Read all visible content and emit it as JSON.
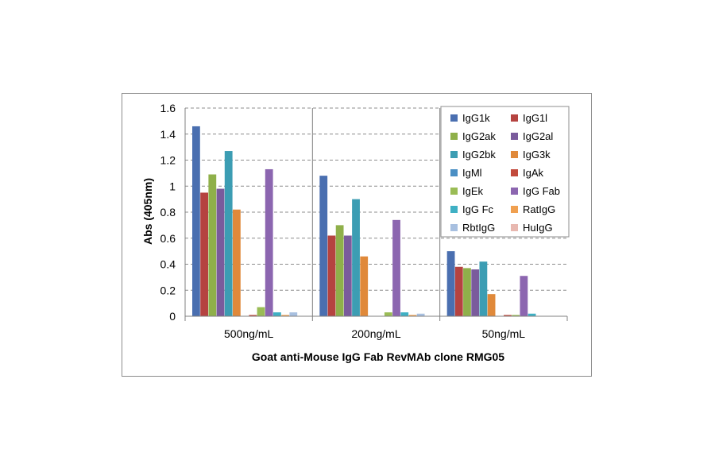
{
  "chart_data": {
    "type": "bar",
    "title": "",
    "xlabel": "Goat anti-Mouse IgG Fab RevMAb clone RMG05",
    "ylabel": "Abs (405nm)",
    "ylim": [
      0,
      1.6
    ],
    "yticks": [
      "0",
      "0.2",
      "0.4",
      "0.6",
      "0.8",
      "1",
      "1.2",
      "1.4",
      "1.6"
    ],
    "grid": true,
    "legend_position": "top-right",
    "categories": [
      "500ng/mL",
      "200ng/mL",
      "50ng/mL"
    ],
    "series": [
      {
        "name": "IgG1k",
        "color": "#4a6fb0",
        "values": [
          1.46,
          1.08,
          0.5
        ]
      },
      {
        "name": "IgG1l",
        "color": "#b54340",
        "values": [
          0.95,
          0.62,
          0.38
        ]
      },
      {
        "name": "IgG2ak",
        "color": "#8fb04a",
        "values": [
          1.09,
          0.7,
          0.37
        ]
      },
      {
        "name": "IgG2al",
        "color": "#7a5b9c",
        "values": [
          0.98,
          0.62,
          0.36
        ]
      },
      {
        "name": "IgG2bk",
        "color": "#3c9db3",
        "values": [
          1.27,
          0.9,
          0.42
        ]
      },
      {
        "name": "IgG3k",
        "color": "#e0893a",
        "values": [
          0.82,
          0.46,
          0.17
        ]
      },
      {
        "name": "IgMl",
        "color": "#4a8fc4",
        "values": [
          0.0,
          0.0,
          0.0
        ]
      },
      {
        "name": "IgAk",
        "color": "#c24a3c",
        "values": [
          0.01,
          0.0,
          0.01
        ]
      },
      {
        "name": "IgEk",
        "color": "#9abc55",
        "values": [
          0.07,
          0.03,
          0.01
        ]
      },
      {
        "name": "IgG Fab",
        "color": "#8c66b0",
        "values": [
          1.13,
          0.74,
          0.31
        ]
      },
      {
        "name": "IgG Fc",
        "color": "#3fb0c4",
        "values": [
          0.03,
          0.03,
          0.02
        ]
      },
      {
        "name": "RatIgG",
        "color": "#f0a050",
        "values": [
          0.01,
          0.01,
          0.0
        ]
      },
      {
        "name": "RbtIgG",
        "color": "#a8c0e0",
        "values": [
          0.03,
          0.02,
          0.0
        ]
      },
      {
        "name": "HuIgG",
        "color": "#e8b8b0",
        "values": [
          0.0,
          0.0,
          0.0
        ]
      }
    ]
  }
}
